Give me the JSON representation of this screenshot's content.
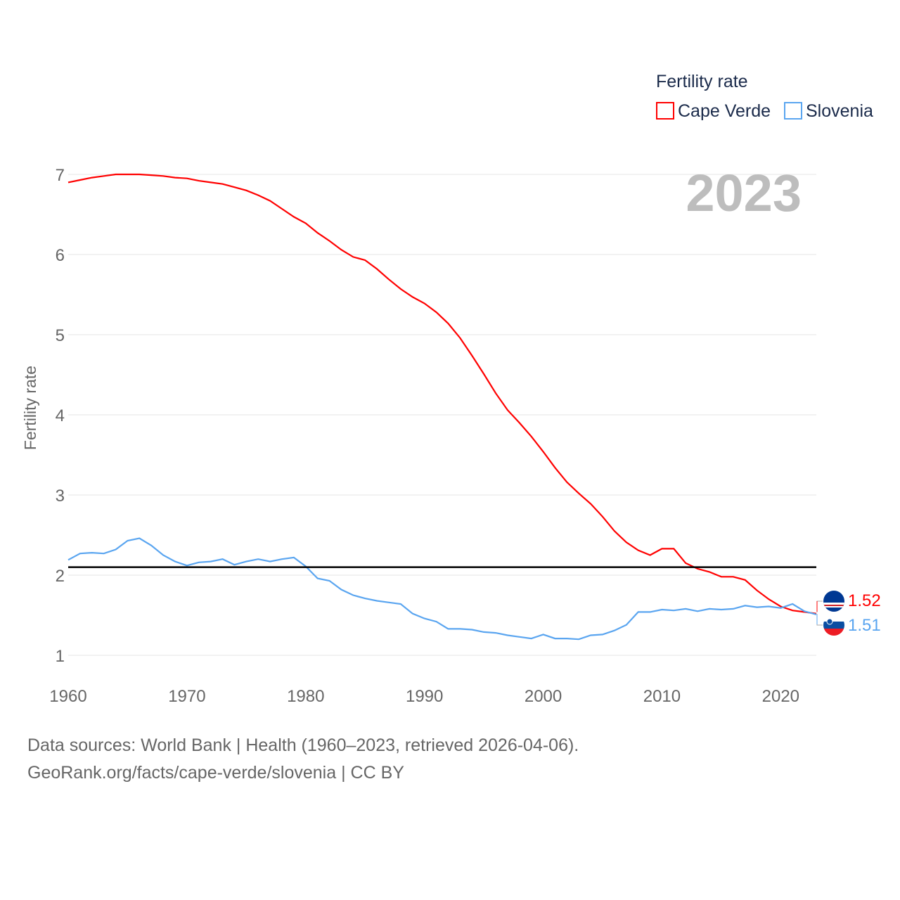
{
  "chart_data": {
    "type": "line",
    "title": "Fertility rate",
    "ylabel": "Fertility rate",
    "xlabel": "",
    "year_label": "2023",
    "ylim": [
      1,
      7
    ],
    "xlim": [
      1960,
      2023
    ],
    "yticks": [
      "1",
      "2",
      "3",
      "4",
      "5",
      "6",
      "7"
    ],
    "xticks": [
      "1960",
      "1970",
      "1980",
      "1990",
      "2000",
      "2010",
      "2020"
    ],
    "reference_line": 2.1,
    "grid": true,
    "legend_position": "top-right",
    "x": [
      1960,
      1961,
      1962,
      1963,
      1964,
      1965,
      1966,
      1967,
      1968,
      1969,
      1970,
      1971,
      1972,
      1973,
      1974,
      1975,
      1976,
      1977,
      1978,
      1979,
      1980,
      1981,
      1982,
      1983,
      1984,
      1985,
      1986,
      1987,
      1988,
      1989,
      1990,
      1991,
      1992,
      1993,
      1994,
      1995,
      1996,
      1997,
      1998,
      1999,
      2000,
      2001,
      2002,
      2003,
      2004,
      2005,
      2006,
      2007,
      2008,
      2009,
      2010,
      2011,
      2012,
      2013,
      2014,
      2015,
      2016,
      2017,
      2018,
      2019,
      2020,
      2021,
      2022,
      2023
    ],
    "series": [
      {
        "name": "Cape Verde",
        "color": "#ff0000",
        "end_label": "1.52",
        "values": [
          6.9,
          6.93,
          6.96,
          6.98,
          7.0,
          7.0,
          7.0,
          6.99,
          6.98,
          6.96,
          6.95,
          6.92,
          6.9,
          6.88,
          6.84,
          6.8,
          6.74,
          6.67,
          6.57,
          6.47,
          6.39,
          6.27,
          6.17,
          6.06,
          5.97,
          5.93,
          5.82,
          5.69,
          5.57,
          5.47,
          5.39,
          5.28,
          5.14,
          4.96,
          4.74,
          4.51,
          4.27,
          4.06,
          3.9,
          3.73,
          3.54,
          3.34,
          3.16,
          3.02,
          2.89,
          2.73,
          2.55,
          2.41,
          2.31,
          2.25,
          2.33,
          2.33,
          2.15,
          2.08,
          2.04,
          1.98,
          1.98,
          1.94,
          1.81,
          1.7,
          1.61,
          1.56,
          1.54,
          1.52
        ]
      },
      {
        "name": "Slovenia",
        "color": "#5aa5f0",
        "end_label": "1.51",
        "values": [
          2.19,
          2.27,
          2.28,
          2.27,
          2.32,
          2.43,
          2.46,
          2.37,
          2.25,
          2.17,
          2.12,
          2.16,
          2.17,
          2.2,
          2.13,
          2.17,
          2.2,
          2.17,
          2.2,
          2.22,
          2.11,
          1.96,
          1.93,
          1.82,
          1.75,
          1.71,
          1.68,
          1.66,
          1.64,
          1.52,
          1.46,
          1.42,
          1.33,
          1.33,
          1.32,
          1.29,
          1.28,
          1.25,
          1.23,
          1.21,
          1.26,
          1.21,
          1.21,
          1.2,
          1.25,
          1.26,
          1.31,
          1.38,
          1.54,
          1.54,
          1.57,
          1.56,
          1.58,
          1.55,
          1.58,
          1.57,
          1.58,
          1.62,
          1.6,
          1.61,
          1.59,
          1.64,
          1.55,
          1.51
        ]
      }
    ]
  },
  "footer": {
    "line1": "Data sources: World Bank | Health (1960–2023, retrieved 2026-04-06).",
    "line2": "GeoRank.org/facts/cape-verde/slovenia | CC BY"
  }
}
